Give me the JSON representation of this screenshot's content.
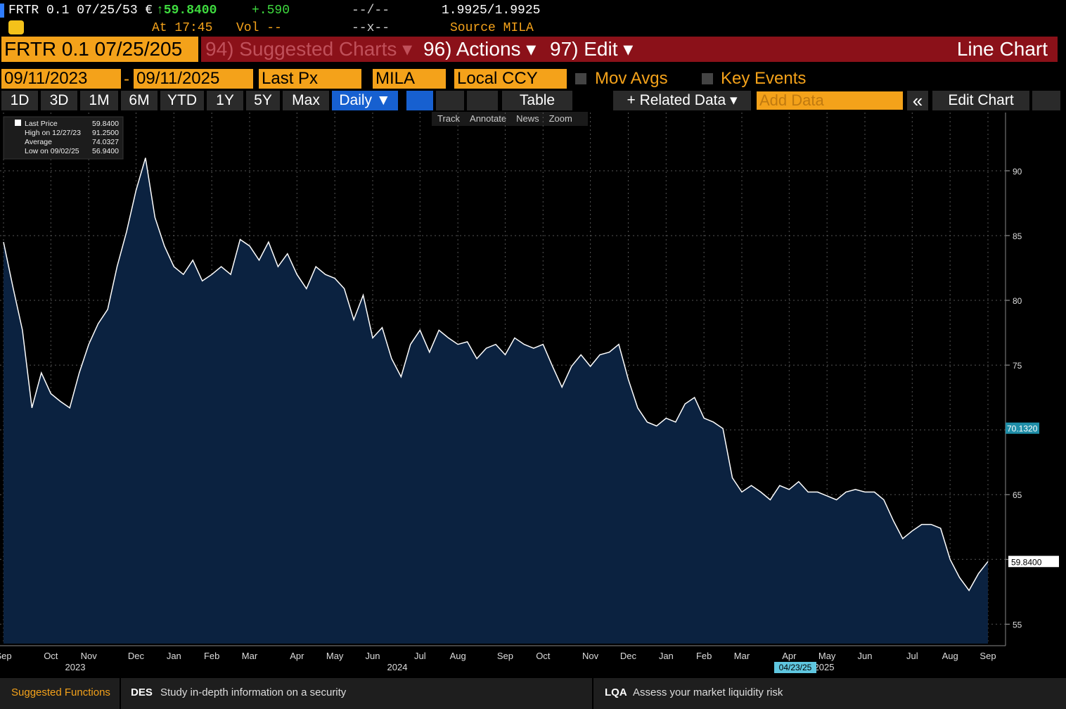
{
  "header": {
    "security": "FRTR 0.1 07/25/53 €",
    "price": "↑59.8400",
    "change": "+.590",
    "bid_ask": "--/--",
    "yield": "1.9925/1.9925",
    "time": "At 17:45",
    "volume": "Vol --",
    "size": "--x--",
    "source": "Source MILA"
  },
  "tabs": {
    "ticker": "FRTR 0.1 07/25/205",
    "suggested": "94) Suggested Charts ▾",
    "actions": "96) Actions ▾",
    "edit": "97) Edit ▾",
    "view": "Line Chart"
  },
  "inputs": {
    "start": "09/11/2023",
    "dash": "-",
    "end": "09/11/2025",
    "field": "Last Px",
    "source": "MILA",
    "currency": "Local CCY",
    "mov_avgs": "Mov Avgs",
    "key_events": "Key Events"
  },
  "periods": [
    "1D",
    "3D",
    "1M",
    "6M",
    "YTD",
    "1Y",
    "5Y",
    "Max"
  ],
  "toolbar": {
    "frequency": "Daily ▼",
    "table": "Table",
    "related": "+ Related Data ▾",
    "add_data": "Add Data",
    "collapse": "«",
    "edit_chart": "Edit Chart"
  },
  "chart_tools": [
    "Track",
    "Annotate",
    "News",
    "Zoom"
  ],
  "footer": {
    "title": "Suggested Functions",
    "items": [
      {
        "code": "DES",
        "text": "Study in-depth information on a security"
      },
      {
        "code": "LQA",
        "text": "Assess your market liquidity risk"
      }
    ]
  },
  "chart_data": {
    "type": "line",
    "stats": [
      [
        "Last Price",
        "59.8400"
      ],
      [
        "High on 12/27/23",
        "91.2500"
      ],
      [
        "Average",
        "74.0327"
      ],
      [
        "Low on 09/02/25",
        "56.9400"
      ]
    ],
    "categories": [
      "Sep",
      null,
      null,
      null,
      null,
      "Oct",
      null,
      null,
      null,
      "Nov",
      null,
      null,
      null,
      null,
      "Dec",
      null,
      null,
      null,
      "Jan",
      null,
      null,
      null,
      "Feb",
      null,
      null,
      null,
      "Mar",
      null,
      null,
      null,
      null,
      "Apr",
      null,
      null,
      null,
      "May",
      null,
      null,
      null,
      "Jun",
      null,
      null,
      null,
      null,
      "Jul",
      null,
      null,
      null,
      "Aug",
      null,
      null,
      null,
      null,
      "Sep",
      null,
      null,
      null,
      "Oct",
      null,
      null,
      null,
      null,
      "Nov",
      null,
      null,
      null,
      "Dec",
      null,
      null,
      null,
      "Jan",
      null,
      null,
      null,
      "Feb",
      null,
      null,
      null,
      "Mar",
      null,
      null,
      null,
      null,
      "Apr",
      null,
      null,
      null,
      "May",
      null,
      null,
      null,
      "Jun",
      null,
      null,
      null,
      null,
      "Jul",
      null,
      null,
      null,
      "Aug",
      null,
      null,
      null,
      "Sep"
    ],
    "years": [
      "2023",
      "2024",
      "2025"
    ],
    "date_flag": "04/23/25",
    "series": [
      {
        "name": "Last Price",
        "color": "#ffffff",
        "fill": "#0b2240",
        "values": [
          84.5,
          81,
          77.7,
          71.7,
          74.4,
          72.8,
          72.2,
          71.7,
          74.4,
          76.6,
          78.2,
          79.3,
          82.6,
          85.3,
          88.5,
          91.0,
          86.4,
          84.2,
          82.6,
          82.0,
          83.1,
          81.5,
          82.0,
          82.6,
          82.0,
          84.7,
          84.2,
          83.1,
          84.5,
          82.6,
          83.6,
          82.0,
          80.9,
          82.6,
          82.0,
          81.7,
          80.9,
          78.5,
          80.4,
          77.1,
          77.9,
          75.5,
          74.1,
          76.6,
          77.7,
          76.0,
          77.7,
          77.1,
          76.6,
          76.8,
          75.5,
          76.3,
          76.6,
          75.8,
          77.1,
          76.6,
          76.3,
          76.6,
          74.9,
          73.3,
          74.9,
          75.8,
          74.9,
          75.8,
          76.0,
          76.6,
          73.9,
          71.7,
          70.6,
          70.3,
          70.9,
          70.6,
          72.0,
          72.5,
          70.9,
          70.6,
          70.1,
          66.3,
          65.2,
          65.7,
          65.2,
          64.6,
          65.7,
          65.4,
          66.0,
          65.2,
          65.2,
          64.9,
          64.6,
          65.2,
          65.4,
          65.2,
          65.2,
          64.6,
          63.0,
          61.6,
          62.2,
          62.7,
          62.7,
          62.4,
          60.0,
          58.6,
          57.6,
          58.9,
          59.84
        ]
      }
    ],
    "markers": [
      {
        "value": 70.132,
        "label": "70.1320"
      },
      {
        "value": 59.84,
        "label": "59.8400"
      }
    ],
    "ylim": [
      53.5,
      94.5
    ],
    "yticks": [
      55,
      60,
      65,
      70,
      75,
      80,
      85,
      90
    ],
    "grid": true
  }
}
